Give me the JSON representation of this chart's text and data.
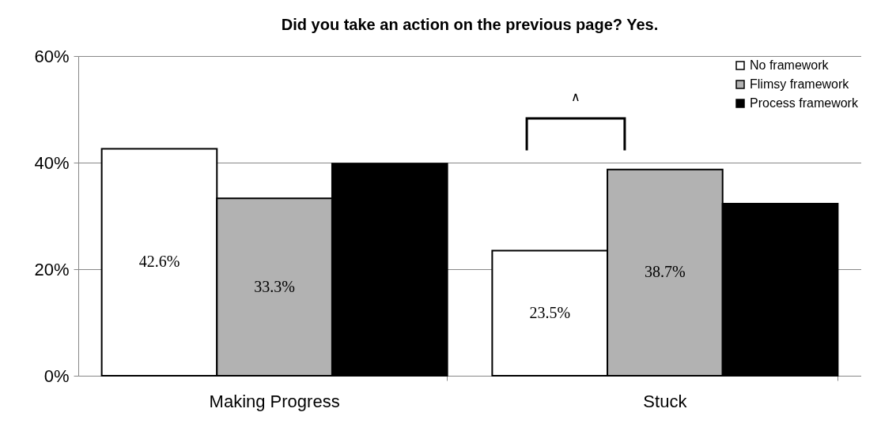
{
  "chart_data": {
    "type": "bar",
    "title": "Did you take an action on the previous page?  Yes.",
    "categories": [
      "Making Progress",
      "Stuck"
    ],
    "series": [
      {
        "name": "No framework",
        "color": "#ffffff",
        "values": [
          42.6,
          23.5
        ],
        "value_labels": [
          "42.6%",
          "23.5%"
        ]
      },
      {
        "name": "Flimsy framework",
        "color": "#b2b2b2",
        "values": [
          33.3,
          38.7
        ],
        "value_labels": [
          "33.3%",
          "38.7%"
        ]
      },
      {
        "name": "Process framework",
        "color": "#000000",
        "values": [
          39.8,
          32.3
        ],
        "value_labels": [
          null,
          null
        ]
      }
    ],
    "ylim": [
      0,
      60
    ],
    "yticks": [
      {
        "value": 0,
        "label": "0%"
      },
      {
        "value": 20,
        "label": "20%"
      },
      {
        "value": 40,
        "label": "40%"
      },
      {
        "value": 60,
        "label": "60%"
      }
    ],
    "grid": "y",
    "legend": "top right",
    "annotations": [
      "∧"
    ]
  }
}
